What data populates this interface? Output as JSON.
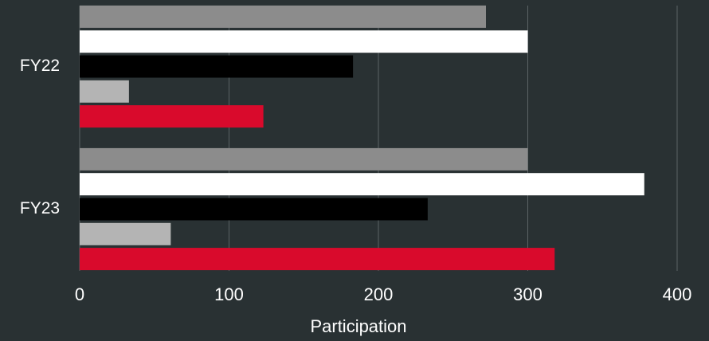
{
  "chart_data": {
    "type": "hbar",
    "x_label": "Participation",
    "categories": [
      "FY22",
      "FY23"
    ],
    "series": [
      {
        "color": "#8c8c8c",
        "values": [
          272,
          300
        ]
      },
      {
        "color": "#ffffff",
        "values": [
          300,
          378
        ]
      },
      {
        "color": "#000000",
        "values": [
          183,
          233
        ]
      },
      {
        "color": "#b4b4b4",
        "values": [
          33,
          61
        ]
      },
      {
        "color": "#d90a2c",
        "values": [
          123,
          318
        ]
      }
    ],
    "xlim": [
      0,
      400
    ],
    "xticks": [
      0,
      100,
      200,
      300,
      400
    ],
    "grid": true
  }
}
